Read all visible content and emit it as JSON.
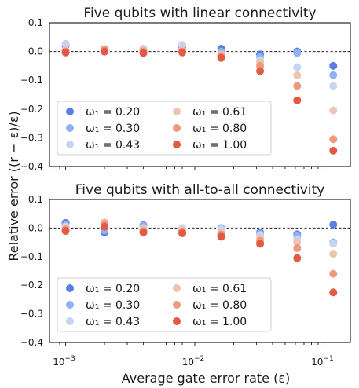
{
  "chart_data": [
    {
      "type": "scatter",
      "title": "Five qubits with linear connectivity",
      "xscale": "log",
      "xlim": [
        0.00075,
        0.16
      ],
      "ylim": [
        -0.4,
        0.1
      ],
      "yticks": [
        "0.1",
        "0.0",
        "−0.1",
        "−0.2",
        "−0.3",
        "−0.4"
      ],
      "reference_line": 0,
      "legend_position": "lower-left",
      "x": [
        0.001,
        0.002,
        0.004,
        0.008,
        0.016,
        0.032,
        0.062,
        0.118
      ],
      "series": [
        {
          "name": "ω₁ = 0.20",
          "color": "#5b7fe0",
          "values": [
            0.02,
            0.0,
            0.003,
            0.015,
            0.01,
            -0.01,
            0.0,
            -0.05
          ]
        },
        {
          "name": "ω₁ = 0.30",
          "color": "#8fb0f2",
          "values": [
            0.025,
            0.0,
            0.005,
            0.02,
            0.0,
            -0.02,
            -0.005,
            -0.082
          ]
        },
        {
          "name": "ω₁ = 0.43",
          "color": "#c6d5ee",
          "values": [
            0.027,
            0.003,
            0.01,
            0.023,
            -0.012,
            -0.03,
            -0.055,
            -0.12
          ]
        },
        {
          "name": "ω₁ = 0.61",
          "color": "#ecc5b2",
          "values": [
            0.005,
            0.007,
            0.01,
            0.005,
            -0.01,
            -0.038,
            -0.083,
            -0.205
          ]
        },
        {
          "name": "ω₁ = 0.80",
          "color": "#ef9a7c",
          "values": [
            0.0,
            0.008,
            0.0,
            0.0,
            -0.015,
            -0.05,
            -0.12,
            -0.305
          ]
        },
        {
          "name": "ω₁ = 1.00",
          "color": "#e05a44",
          "values": [
            -0.003,
            0.0,
            -0.005,
            -0.003,
            -0.022,
            -0.068,
            -0.17,
            -0.345
          ]
        }
      ]
    },
    {
      "type": "scatter",
      "title": "Five qubits with all-to-all connectivity",
      "xscale": "log",
      "xlim": [
        0.00075,
        0.16
      ],
      "ylim": [
        -0.4,
        0.1
      ],
      "yticks": [
        "0.1",
        "0.0",
        "−0.1",
        "−0.2",
        "−0.3",
        "−0.4"
      ],
      "reference_line": 0,
      "legend_position": "lower-left",
      "x": [
        0.001,
        0.002,
        0.004,
        0.008,
        0.016,
        0.032,
        0.062,
        0.118
      ],
      "series": [
        {
          "name": "ω₁ = 0.20",
          "color": "#5b7fe0",
          "values": [
            0.018,
            -0.015,
            0.01,
            -0.005,
            -0.003,
            -0.015,
            -0.022,
            0.012
          ]
        },
        {
          "name": "ω₁ = 0.30",
          "color": "#8fb0f2",
          "values": [
            0.01,
            -0.008,
            0.008,
            -0.003,
            0.0,
            -0.02,
            -0.028,
            -0.05
          ]
        },
        {
          "name": "ω₁ = 0.43",
          "color": "#c6d5ee",
          "values": [
            0.005,
            0.012,
            0.0,
            0.0,
            -0.005,
            -0.025,
            -0.04,
            -0.055
          ]
        },
        {
          "name": "ω₁ = 0.61",
          "color": "#ecc5b2",
          "values": [
            0.0,
            0.02,
            -0.005,
            -0.008,
            -0.015,
            -0.035,
            -0.05,
            -0.09
          ]
        },
        {
          "name": "ω₁ = 0.80",
          "color": "#ef9a7c",
          "values": [
            -0.005,
            0.015,
            -0.01,
            -0.012,
            -0.022,
            -0.045,
            -0.07,
            -0.16
          ]
        },
        {
          "name": "ω₁ = 1.00",
          "color": "#e05a44",
          "values": [
            -0.01,
            0.005,
            -0.015,
            -0.018,
            -0.03,
            -0.055,
            -0.105,
            -0.225
          ]
        }
      ]
    }
  ],
  "axes": {
    "xlabel": "Average gate error rate (ε)",
    "ylabel": "Relative error ((r − ε)/ε)",
    "xticks": [
      {
        "value": 0.001,
        "base": "10",
        "exp": "−3"
      },
      {
        "value": 0.01,
        "base": "10",
        "exp": "−2"
      },
      {
        "value": 0.1,
        "base": "10",
        "exp": "−1"
      }
    ]
  }
}
